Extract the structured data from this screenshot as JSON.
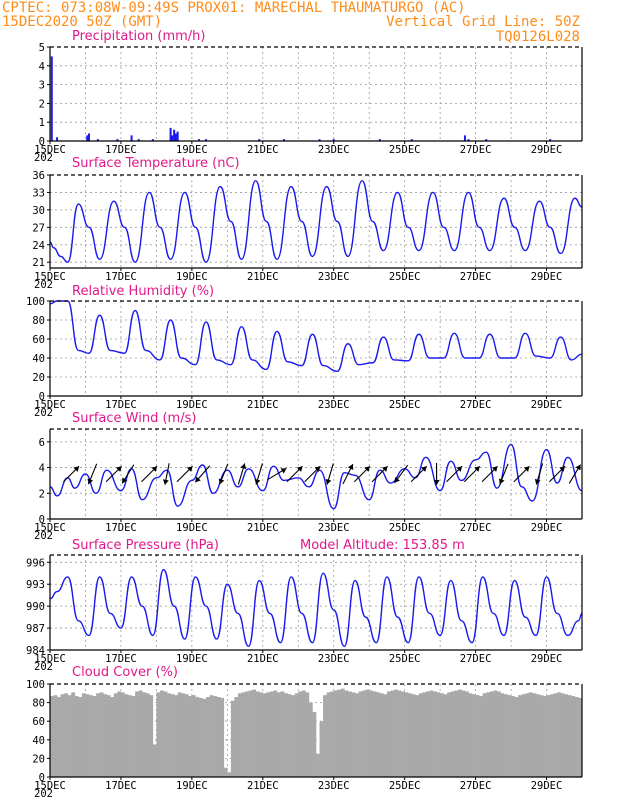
{
  "header": {
    "line1": "CPTEC:   073:08W-09:49S   PROX01: MARECHAL THAUMATURGO (AC)",
    "line2_left": "15DEC2020 50Z (GMT)",
    "line2_right": "Vertical Grid Line: 50Z",
    "line3_right": "TQ0126L028"
  },
  "colors": {
    "header": "#ff8c1a",
    "title": "#e0198a",
    "series": "#1a1aee",
    "wind_arrow": "#000000",
    "cloud": "#a9a9a9"
  },
  "x_axis": {
    "start_day": 15,
    "end_day": 30,
    "tick_labels": [
      "15DEC",
      "17DEC",
      "19DEC",
      "21DEC",
      "23DEC",
      "25DEC",
      "27DEC",
      "29DEC"
    ],
    "sub_label": "202"
  },
  "chart_data": [
    {
      "type": "bar",
      "title": "Precipitation (mm/h)",
      "ylim": [
        0,
        5
      ],
      "yticks": [
        "0",
        "1",
        "2",
        "3",
        "4",
        "5"
      ],
      "x_day": [
        15.05,
        15.2,
        16.05,
        16.1,
        16.35,
        16.9,
        17.3,
        17.5,
        17.9,
        18.4,
        18.45,
        18.5,
        18.55,
        18.6,
        19.2,
        19.4,
        20.9,
        21.6,
        22.6,
        23.0,
        24.3,
        25.2,
        26.7,
        26.8,
        27.3,
        29.1
      ],
      "values": [
        4.5,
        0.2,
        0.3,
        0.4,
        0.1,
        0.1,
        0.3,
        0.1,
        0.1,
        0.7,
        0.3,
        0.6,
        0.4,
        0.5,
        0.1,
        0.1,
        0.1,
        0.1,
        0.1,
        0.1,
        0.1,
        0.1,
        0.3,
        0.1,
        0.1,
        0.1
      ]
    },
    {
      "type": "line",
      "title": "Surface Temperature (nC)",
      "ylim": [
        20,
        36
      ],
      "yticks": [
        "21",
        "24",
        "27",
        "30",
        "33",
        "36"
      ],
      "x_day": [
        15,
        15.1,
        15.3,
        15.5,
        15.8,
        16.1,
        16.4,
        16.8,
        17.1,
        17.4,
        17.8,
        18.1,
        18.4,
        18.8,
        19.1,
        19.4,
        19.8,
        20.1,
        20.4,
        20.8,
        21.1,
        21.4,
        21.8,
        22.1,
        22.4,
        22.8,
        23.1,
        23.4,
        23.8,
        24.1,
        24.4,
        24.8,
        25.1,
        25.4,
        25.8,
        26.1,
        26.4,
        26.8,
        27.1,
        27.4,
        27.8,
        28.1,
        28.4,
        28.8,
        29.1,
        29.4,
        29.8,
        30
      ],
      "values": [
        24.5,
        23.5,
        22,
        21,
        31,
        27,
        21.5,
        31.5,
        27,
        21,
        33,
        27,
        21.5,
        33,
        27,
        21,
        34,
        28,
        21.5,
        35,
        28,
        21.5,
        34,
        28,
        22,
        34,
        28,
        22,
        35,
        28,
        23,
        33,
        27,
        23,
        33,
        27,
        23,
        33,
        27,
        23,
        32,
        27,
        23,
        31.5,
        27,
        22.5,
        32,
        30.5
      ]
    },
    {
      "type": "line",
      "title": "Relative Humidity (%)",
      "ylim": [
        0,
        100
      ],
      "yticks": [
        "0",
        "20",
        "40",
        "60",
        "80",
        "100"
      ],
      "x_day": [
        15,
        15.2,
        15.5,
        15.8,
        16.1,
        16.4,
        16.7,
        17.1,
        17.4,
        17.7,
        18.1,
        18.4,
        18.7,
        19.1,
        19.4,
        19.7,
        20.1,
        20.4,
        20.7,
        21.1,
        21.4,
        21.7,
        22.1,
        22.4,
        22.7,
        23.1,
        23.4,
        23.7,
        24.1,
        24.4,
        24.7,
        25.1,
        25.4,
        25.7,
        26.1,
        26.4,
        26.7,
        27.1,
        27.4,
        27.7,
        28.1,
        28.4,
        28.7,
        29.1,
        29.4,
        29.7,
        30
      ],
      "values": [
        97,
        100,
        100,
        48,
        45,
        85,
        48,
        45,
        90,
        48,
        38,
        80,
        40,
        33,
        78,
        38,
        33,
        73,
        38,
        28,
        68,
        36,
        32,
        65,
        32,
        26,
        55,
        33,
        35,
        62,
        38,
        37,
        65,
        40,
        40,
        66,
        40,
        40,
        65,
        40,
        40,
        66,
        42,
        40,
        62,
        38,
        44
      ]
    },
    {
      "type": "line",
      "title": "Surface Wind (m/s)",
      "ylim": [
        0,
        7
      ],
      "yticks": [
        "0",
        "2",
        "4",
        "6"
      ],
      "x_day": [
        15,
        15.2,
        15.5,
        15.7,
        16,
        16.3,
        16.6,
        17,
        17.3,
        17.6,
        18,
        18.3,
        18.6,
        19,
        19.3,
        19.6,
        20,
        20.3,
        20.6,
        21,
        21.3,
        21.6,
        22,
        22.3,
        22.6,
        23,
        23.3,
        23.6,
        24,
        24.3,
        24.6,
        25,
        25.3,
        25.6,
        26,
        26.3,
        26.6,
        27,
        27.3,
        27.6,
        28,
        28.3,
        28.6,
        29,
        29.3,
        29.6,
        30
      ],
      "values": [
        2.5,
        1.8,
        3.2,
        2.4,
        3.5,
        2.0,
        3.8,
        2.2,
        3.9,
        1.5,
        3.2,
        3.8,
        1.0,
        3.0,
        4.2,
        2.0,
        3.8,
        2.5,
        3.9,
        2.2,
        4.1,
        3.0,
        3.2,
        2.5,
        3.8,
        0.8,
        3.6,
        3.4,
        1.5,
        3.8,
        2.8,
        3.9,
        3.2,
        4.8,
        2.2,
        4.5,
        3.0,
        4.6,
        5.2,
        2.4,
        5.8,
        2.5,
        1.4,
        5.4,
        2.8,
        4.8,
        2.2
      ],
      "arrows": [
        {
          "day": 15.6,
          "u": 1,
          "v": 1
        },
        {
          "day": 16.2,
          "u": -0.4,
          "v": -1
        },
        {
          "day": 16.8,
          "u": 1,
          "v": 1
        },
        {
          "day": 17.2,
          "u": -0.5,
          "v": -0.8
        },
        {
          "day": 17.8,
          "u": 1,
          "v": 1
        },
        {
          "day": 18.3,
          "u": -0.2,
          "v": -1
        },
        {
          "day": 18.8,
          "u": 1,
          "v": 1
        },
        {
          "day": 19.3,
          "u": -0.7,
          "v": -0.8
        },
        {
          "day": 19.9,
          "u": -0.4,
          "v": -1
        },
        {
          "day": 20.4,
          "u": 0.3,
          "v": 1
        },
        {
          "day": 20.9,
          "u": -0.3,
          "v": -1
        },
        {
          "day": 21.4,
          "u": 1,
          "v": 0.6
        },
        {
          "day": 21.9,
          "u": 1,
          "v": 1
        },
        {
          "day": 22.4,
          "u": 1,
          "v": 1
        },
        {
          "day": 22.9,
          "u": -0.3,
          "v": -1
        },
        {
          "day": 23.4,
          "u": 0.5,
          "v": 1
        },
        {
          "day": 23.8,
          "u": 1,
          "v": 1
        },
        {
          "day": 24.3,
          "u": 1,
          "v": 1
        },
        {
          "day": 24.9,
          "u": -0.6,
          "v": -0.8
        },
        {
          "day": 25.4,
          "u": 1,
          "v": 1
        },
        {
          "day": 25.9,
          "u": 0,
          "v": -1
        },
        {
          "day": 26.4,
          "u": 1,
          "v": 1
        },
        {
          "day": 26.9,
          "u": 1,
          "v": 1
        },
        {
          "day": 27.4,
          "u": 1,
          "v": 1
        },
        {
          "day": 27.8,
          "u": -0.4,
          "v": -1
        },
        {
          "day": 28.3,
          "u": 1,
          "v": 1
        },
        {
          "day": 28.8,
          "u": -0.3,
          "v": -1
        },
        {
          "day": 29.3,
          "u": 1,
          "v": 1
        },
        {
          "day": 29.8,
          "u": 0.6,
          "v": 1
        }
      ]
    },
    {
      "type": "line",
      "title": "Surface Pressure (hPa)",
      "annotation": "Model Altitude: 153.85 m",
      "ylim": [
        984,
        997
      ],
      "yticks": [
        "984",
        "987",
        "990",
        "993",
        "996"
      ],
      "x_day": [
        15,
        15.2,
        15.5,
        15.8,
        16.1,
        16.4,
        16.7,
        17,
        17.3,
        17.6,
        17.9,
        18.2,
        18.5,
        18.8,
        19.1,
        19.4,
        19.7,
        20,
        20.3,
        20.6,
        20.9,
        21.2,
        21.5,
        21.8,
        22.1,
        22.4,
        22.7,
        23,
        23.3,
        23.6,
        23.9,
        24.2,
        24.5,
        24.8,
        25.1,
        25.4,
        25.7,
        26,
        26.3,
        26.6,
        26.9,
        27.2,
        27.5,
        27.8,
        28.1,
        28.4,
        28.7,
        29,
        29.3,
        29.6,
        29.9,
        30
      ],
      "values": [
        991,
        992,
        994,
        988,
        986,
        994,
        989,
        987,
        994,
        990,
        986,
        995,
        990,
        985.5,
        994,
        990,
        985.5,
        993,
        989,
        984.5,
        993.5,
        989,
        985,
        994,
        989,
        985,
        994.5,
        989.5,
        984.5,
        993.5,
        988.5,
        985,
        994,
        988.5,
        985,
        994,
        989,
        986,
        993.5,
        988,
        985,
        994,
        989,
        986,
        993.5,
        988.5,
        986,
        994,
        989,
        986,
        988,
        989
      ]
    },
    {
      "type": "bar",
      "title": "Cloud Cover (%)",
      "ylim": [
        0,
        100
      ],
      "yticks": [
        "0",
        "20",
        "40",
        "60",
        "80",
        "100"
      ],
      "x_day": [
        15.0,
        15.1,
        15.2,
        15.3,
        15.4,
        15.5,
        15.6,
        15.7,
        15.8,
        15.9,
        16.0,
        16.1,
        16.2,
        16.3,
        16.4,
        16.5,
        16.6,
        16.7,
        16.8,
        16.9,
        17.0,
        17.1,
        17.2,
        17.3,
        17.4,
        17.5,
        17.6,
        17.7,
        17.8,
        17.9,
        18.0,
        18.1,
        18.2,
        18.3,
        18.4,
        18.5,
        18.6,
        18.7,
        18.8,
        18.9,
        19.0,
        19.1,
        19.2,
        19.3,
        19.4,
        19.5,
        19.6,
        19.7,
        19.8,
        19.9,
        20.0,
        20.1,
        20.2,
        20.3,
        20.4,
        20.5,
        20.6,
        20.7,
        20.8,
        20.9,
        21.0,
        21.1,
        21.2,
        21.3,
        21.4,
        21.5,
        21.6,
        21.7,
        21.8,
        21.9,
        22.0,
        22.1,
        22.2,
        22.3,
        22.4,
        22.5,
        22.6,
        22.7,
        22.8,
        22.9,
        23.0,
        23.1,
        23.2,
        23.3,
        23.4,
        23.5,
        23.6,
        23.7,
        23.8,
        23.9,
        24.0,
        24.1,
        24.2,
        24.3,
        24.4,
        24.5,
        24.6,
        24.7,
        24.8,
        24.9,
        25.0,
        25.1,
        25.2,
        25.3,
        25.4,
        25.5,
        25.6,
        25.7,
        25.8,
        25.9,
        26.0,
        26.1,
        26.2,
        26.3,
        26.4,
        26.5,
        26.6,
        26.7,
        26.8,
        26.9,
        27.0,
        27.1,
        27.2,
        27.3,
        27.4,
        27.5,
        27.6,
        27.7,
        27.8,
        27.9,
        28.0,
        28.1,
        28.2,
        28.3,
        28.4,
        28.5,
        28.6,
        28.7,
        28.8,
        28.9,
        29.0,
        29.1,
        29.2,
        29.3,
        29.4,
        29.5,
        29.6,
        29.7,
        29.8,
        29.9
      ],
      "values": [
        87,
        88,
        86,
        89,
        90,
        88,
        91,
        87,
        86,
        90,
        89,
        88,
        87,
        90,
        91,
        89,
        88,
        86,
        90,
        92,
        91,
        89,
        88,
        87,
        92,
        93,
        91,
        90,
        88,
        35,
        91,
        93,
        92,
        90,
        89,
        88,
        91,
        90,
        89,
        87,
        88,
        86,
        85,
        84,
        86,
        88,
        87,
        86,
        85,
        10,
        5,
        82,
        86,
        90,
        91,
        92,
        93,
        94,
        92,
        91,
        90,
        91,
        92,
        93,
        91,
        92,
        90,
        89,
        88,
        90,
        92,
        93,
        91,
        80,
        70,
        25,
        60,
        88,
        91,
        92,
        93,
        94,
        95,
        93,
        92,
        91,
        90,
        92,
        93,
        94,
        93,
        92,
        91,
        90,
        89,
        92,
        93,
        94,
        93,
        92,
        91,
        90,
        89,
        88,
        90,
        91,
        92,
        93,
        92,
        91,
        90,
        89,
        91,
        92,
        93,
        94,
        93,
        92,
        90,
        89,
        88,
        87,
        90,
        91,
        92,
        93,
        92,
        90,
        89,
        88,
        87,
        86,
        88,
        89,
        90,
        91,
        90,
        89,
        88,
        87,
        88,
        89,
        90,
        91,
        90,
        89,
        88,
        87,
        86,
        85
      ]
    }
  ]
}
